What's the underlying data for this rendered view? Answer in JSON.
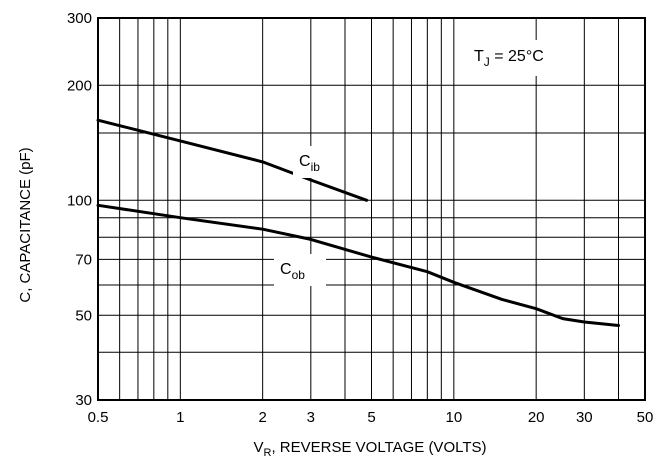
{
  "chart_data": {
    "type": "line",
    "title": "",
    "xlabel": {
      "main": "V",
      "sub": "R",
      "rest": ", REVERSE VOLTAGE (VOLTS)"
    },
    "ylabel": "C, CAPACITANCE (pF)",
    "x_scale": "log",
    "y_scale": "log",
    "xlim": [
      0.5,
      50
    ],
    "ylim": [
      30,
      300
    ],
    "grid": true,
    "x_ticks": [
      {
        "value": 0.5,
        "label": "0.5"
      },
      {
        "value": 1,
        "label": "1"
      },
      {
        "value": 2,
        "label": "2"
      },
      {
        "value": 3,
        "label": "3"
      },
      {
        "value": 5,
        "label": "5"
      },
      {
        "value": 10,
        "label": "10"
      },
      {
        "value": 20,
        "label": "20"
      },
      {
        "value": 30,
        "label": "30"
      },
      {
        "value": 50,
        "label": "50"
      }
    ],
    "y_ticks": [
      {
        "value": 30,
        "label": "30"
      },
      {
        "value": 50,
        "label": "50"
      },
      {
        "value": 70,
        "label": "70"
      },
      {
        "value": 100,
        "label": "100"
      },
      {
        "value": 200,
        "label": "200"
      },
      {
        "value": 300,
        "label": "300"
      }
    ],
    "x_grid": [
      0.6,
      0.7,
      0.8,
      0.9,
      1,
      2,
      3,
      4,
      5,
      6,
      7,
      8,
      9,
      10,
      20,
      30,
      40
    ],
    "y_grid": [
      40,
      50,
      60,
      70,
      80,
      90,
      100,
      150,
      200
    ],
    "series": [
      {
        "name": {
          "main": "C",
          "sub": "ib"
        },
        "x": [
          0.5,
          1,
          2,
          3,
          4.8
        ],
        "y": [
          162,
          143,
          126,
          113,
          100
        ]
      },
      {
        "name": {
          "main": "C",
          "sub": "ob"
        },
        "x": [
          0.5,
          1,
          2,
          3,
          5,
          8,
          10,
          15,
          20,
          25,
          30,
          40
        ],
        "y": [
          97,
          90,
          84,
          79,
          71,
          65,
          61,
          55,
          52,
          49,
          48,
          47
        ]
      }
    ],
    "annotations": [
      {
        "main": "T",
        "sub": "J",
        "rest": " = 25°C"
      }
    ]
  }
}
